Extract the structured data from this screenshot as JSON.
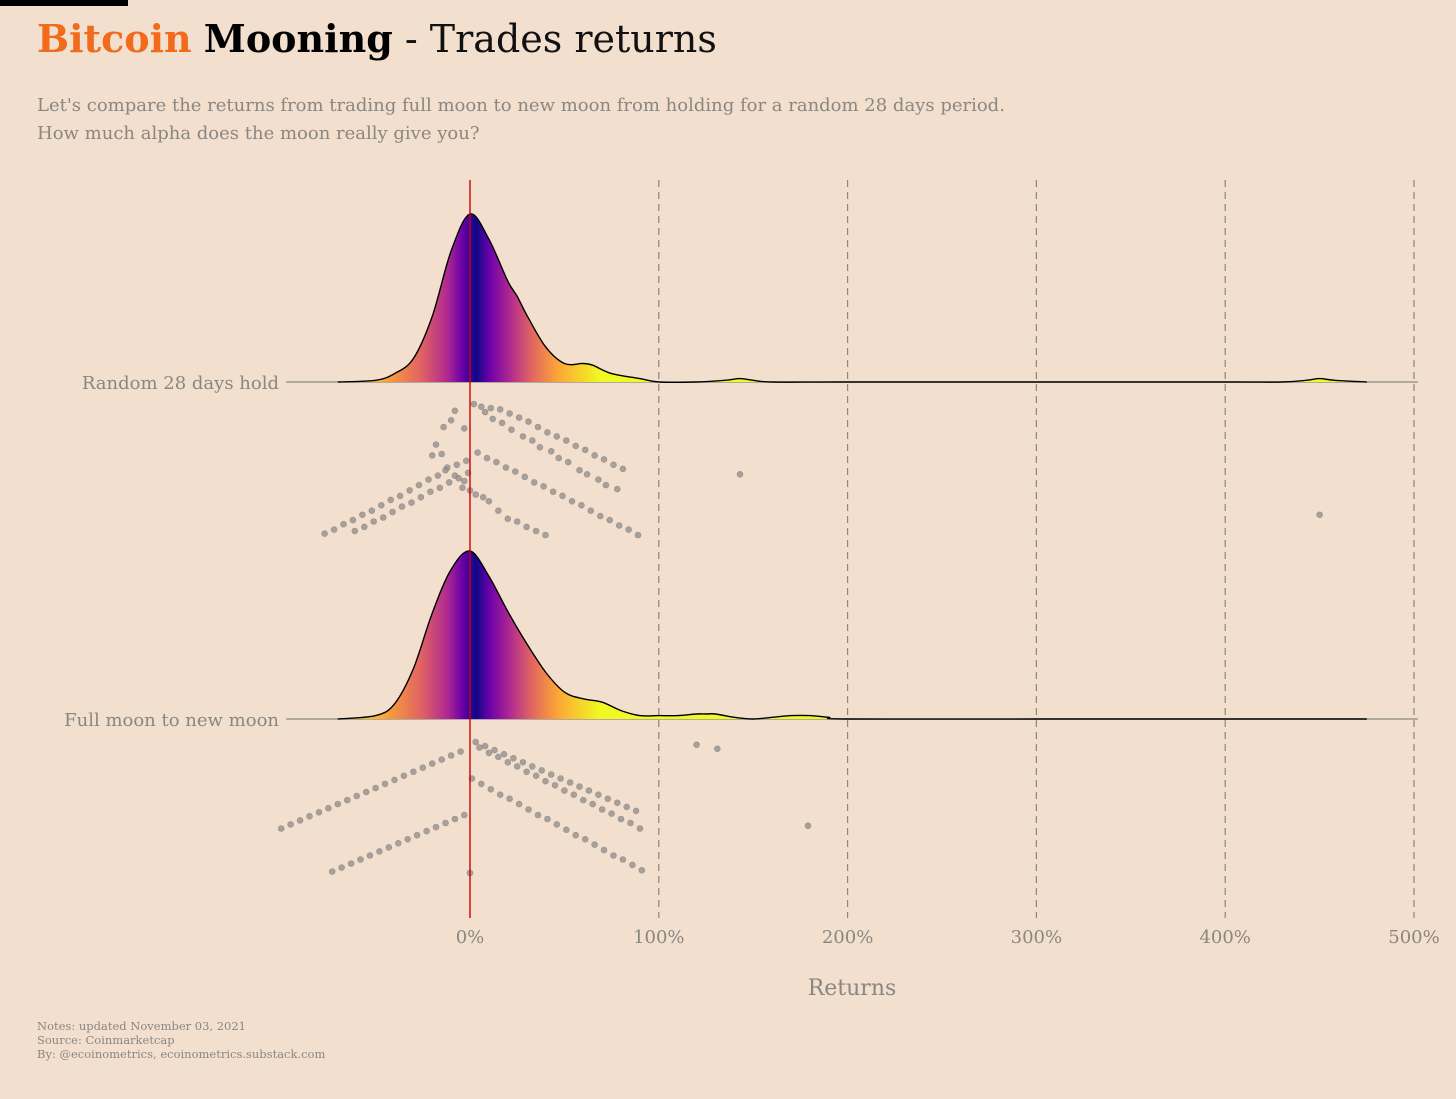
{
  "header": {
    "title_brand": "Bitcoin",
    "title_bold": "Mooning",
    "title_rest": " - Trades returns",
    "subtitle_line1": "Let's compare the returns from trading full moon to new moon from holding for a random 28 days period.",
    "subtitle_line2": "How much alpha does the moon really give you?"
  },
  "footer": {
    "notes": "Notes: updated November 03, 2021",
    "source": "Source: Coinmarketcap",
    "by": "By: @ecoinometrics, ecoinometrics.substack.com"
  },
  "colors": {
    "background": "#f2dfce",
    "brand": "#f26a1b",
    "zero_line": "#cc0000",
    "grid": "#8a8782",
    "points": "#8f8c89",
    "gradient": [
      "#f0f921",
      "#fca636",
      "#e16462",
      "#b12a90",
      "#6a00a8",
      "#0d0887"
    ]
  },
  "chart_data": {
    "type": "ridgeline",
    "title": "Bitcoin Mooning - Trades returns",
    "xlabel": "Returns",
    "ylabel": "",
    "xlim": [
      -70,
      500
    ],
    "x_ticks": [
      0,
      100,
      200,
      300,
      400,
      500
    ],
    "x_tick_labels": [
      "0%",
      "100%",
      "200%",
      "300%",
      "400%",
      "500%"
    ],
    "grid": "vertical dashed lines at 100%, 200%, 300%, 400%, 500%",
    "reference_line": {
      "x": 0,
      "color": "red"
    },
    "series": [
      {
        "name": "Random 28 days hold",
        "density_x": [
          -70,
          -50,
          -40,
          -30,
          -20,
          -10,
          0,
          10,
          20,
          25,
          30,
          40,
          50,
          60,
          65,
          75,
          90,
          100,
          120,
          135,
          143,
          150,
          160,
          200,
          300,
          400,
          430,
          443,
          450,
          458,
          475
        ],
        "density_y": [
          0.0,
          0.01,
          0.05,
          0.14,
          0.39,
          0.78,
          1.0,
          0.85,
          0.6,
          0.51,
          0.4,
          0.21,
          0.11,
          0.11,
          0.1,
          0.05,
          0.02,
          0.0,
          0.0,
          0.01,
          0.02,
          0.01,
          0.0,
          0.0,
          0.0,
          0.0,
          0.0,
          0.01,
          0.02,
          0.01,
          0.0
        ],
        "points": [
          [
            -3,
            79
          ],
          [
            -8,
            92
          ],
          [
            -14,
            80
          ],
          [
            -10,
            85
          ],
          [
            -18,
            67
          ],
          [
            -15,
            60
          ],
          [
            -20,
            59
          ],
          [
            -12,
            50
          ],
          [
            -8,
            44
          ],
          [
            -3,
            40
          ],
          [
            -4,
            35
          ],
          [
            0,
            33
          ],
          [
            3,
            30
          ],
          [
            7,
            28
          ],
          [
            10,
            25
          ],
          [
            15,
            18
          ],
          [
            20,
            12
          ],
          [
            25,
            10
          ],
          [
            30,
            6
          ],
          [
            35,
            3
          ],
          [
            40,
            0
          ],
          [
            6,
            95
          ],
          [
            11,
            94
          ],
          [
            16,
            93
          ],
          [
            21,
            90
          ],
          [
            26,
            87
          ],
          [
            31,
            84
          ],
          [
            36,
            80
          ],
          [
            41,
            76
          ],
          [
            46,
            73
          ],
          [
            51,
            70
          ],
          [
            56,
            66
          ],
          [
            61,
            63
          ],
          [
            66,
            59
          ],
          [
            71,
            56
          ],
          [
            76,
            52
          ],
          [
            81,
            49
          ],
          [
            -1,
            46
          ],
          [
            -6,
            42
          ],
          [
            -11,
            39
          ],
          [
            -16,
            35
          ],
          [
            -21,
            32
          ],
          [
            -26,
            28
          ],
          [
            -31,
            24
          ],
          [
            -36,
            21
          ],
          [
            -41,
            17
          ],
          [
            -46,
            13
          ],
          [
            -51,
            10
          ],
          [
            -56,
            6
          ],
          [
            -61,
            3
          ],
          [
            2,
            97
          ],
          [
            8,
            91
          ],
          [
            12,
            86
          ],
          [
            17,
            83
          ],
          [
            22,
            78
          ],
          [
            28,
            73
          ],
          [
            33,
            70
          ],
          [
            37,
            65
          ],
          [
            43,
            62
          ],
          [
            47,
            57
          ],
          [
            52,
            54
          ],
          [
            58,
            48
          ],
          [
            62,
            45
          ],
          [
            68,
            41
          ],
          [
            72,
            37
          ],
          [
            78,
            34
          ],
          [
            -2,
            55
          ],
          [
            -7,
            52
          ],
          [
            -13,
            48
          ],
          [
            -17,
            44
          ],
          [
            -22,
            41
          ],
          [
            -27,
            37
          ],
          [
            -32,
            33
          ],
          [
            -37,
            29
          ],
          [
            -42,
            26
          ],
          [
            -47,
            22
          ],
          [
            -52,
            18
          ],
          [
            -57,
            15
          ],
          [
            -62,
            11
          ],
          [
            -67,
            8
          ],
          [
            -72,
            4
          ],
          [
            -77,
            1
          ],
          [
            4,
            61
          ],
          [
            9,
            57
          ],
          [
            14,
            54
          ],
          [
            19,
            50
          ],
          [
            24,
            47
          ],
          [
            29,
            43
          ],
          [
            34,
            39
          ],
          [
            39,
            36
          ],
          [
            44,
            32
          ],
          [
            49,
            29
          ],
          [
            54,
            25
          ],
          [
            59,
            22
          ],
          [
            64,
            18
          ],
          [
            69,
            14
          ],
          [
            74,
            11
          ],
          [
            79,
            7
          ],
          [
            84,
            4
          ],
          [
            89,
            0
          ],
          [
            143,
            45
          ],
          [
            450,
            15
          ]
        ]
      },
      {
        "name": "Full moon to new moon",
        "density_x": [
          -70,
          -50,
          -40,
          -30,
          -20,
          -10,
          0,
          10,
          20,
          30,
          40,
          50,
          60,
          70,
          80,
          90,
          100,
          110,
          120,
          125,
          130,
          140,
          150,
          160,
          170,
          180,
          190,
          200,
          300,
          400,
          475
        ],
        "density_y": [
          0.0,
          0.02,
          0.09,
          0.3,
          0.63,
          0.89,
          1.0,
          0.85,
          0.64,
          0.45,
          0.28,
          0.16,
          0.12,
          0.1,
          0.05,
          0.02,
          0.02,
          0.02,
          0.03,
          0.03,
          0.03,
          0.01,
          0.0,
          0.01,
          0.02,
          0.02,
          0.01,
          0.0,
          0.0,
          0.0,
          0.0
        ],
        "points": [
          [
            -5,
            90
          ],
          [
            -10,
            87
          ],
          [
            -15,
            84
          ],
          [
            -20,
            81
          ],
          [
            -25,
            78
          ],
          [
            -30,
            75
          ],
          [
            -35,
            72
          ],
          [
            -40,
            69
          ],
          [
            -45,
            66
          ],
          [
            -50,
            63
          ],
          [
            -55,
            60
          ],
          [
            -60,
            57
          ],
          [
            -65,
            54
          ],
          [
            -70,
            51
          ],
          [
            -75,
            48
          ],
          [
            -80,
            45
          ],
          [
            -85,
            42
          ],
          [
            -90,
            39
          ],
          [
            -95,
            36
          ],
          [
            -100,
            33
          ],
          [
            5,
            93
          ],
          [
            10,
            89
          ],
          [
            15,
            86
          ],
          [
            20,
            82
          ],
          [
            25,
            79
          ],
          [
            30,
            75
          ],
          [
            35,
            72
          ],
          [
            40,
            68
          ],
          [
            45,
            65
          ],
          [
            50,
            61
          ],
          [
            55,
            58
          ],
          [
            60,
            54
          ],
          [
            65,
            51
          ],
          [
            70,
            47
          ],
          [
            75,
            44
          ],
          [
            80,
            40
          ],
          [
            85,
            37
          ],
          [
            90,
            33
          ],
          [
            0,
            0
          ],
          [
            3,
            97
          ],
          [
            8,
            94
          ],
          [
            13,
            91
          ],
          [
            18,
            88
          ],
          [
            23,
            85
          ],
          [
            28,
            82
          ],
          [
            33,
            79
          ],
          [
            38,
            76
          ],
          [
            43,
            73
          ],
          [
            48,
            70
          ],
          [
            53,
            67
          ],
          [
            58,
            64
          ],
          [
            63,
            61
          ],
          [
            68,
            58
          ],
          [
            73,
            55
          ],
          [
            78,
            52
          ],
          [
            83,
            49
          ],
          [
            88,
            46
          ],
          [
            -3,
            43
          ],
          [
            -8,
            40
          ],
          [
            -13,
            37
          ],
          [
            -18,
            34
          ],
          [
            -23,
            31
          ],
          [
            -28,
            28
          ],
          [
            -33,
            25
          ],
          [
            -38,
            22
          ],
          [
            -43,
            19
          ],
          [
            -48,
            16
          ],
          [
            -53,
            13
          ],
          [
            -58,
            10
          ],
          [
            -63,
            7
          ],
          [
            -68,
            4
          ],
          [
            -73,
            1
          ],
          [
            1,
            70
          ],
          [
            6,
            66
          ],
          [
            11,
            62
          ],
          [
            16,
            58
          ],
          [
            21,
            55
          ],
          [
            26,
            51
          ],
          [
            31,
            47
          ],
          [
            36,
            43
          ],
          [
            41,
            40
          ],
          [
            46,
            36
          ],
          [
            51,
            32
          ],
          [
            56,
            28
          ],
          [
            61,
            25
          ],
          [
            66,
            21
          ],
          [
            71,
            17
          ],
          [
            76,
            13
          ],
          [
            81,
            10
          ],
          [
            86,
            6
          ],
          [
            91,
            2
          ],
          [
            120,
            95
          ],
          [
            131,
            92
          ],
          [
            179,
            35
          ]
        ]
      }
    ]
  }
}
